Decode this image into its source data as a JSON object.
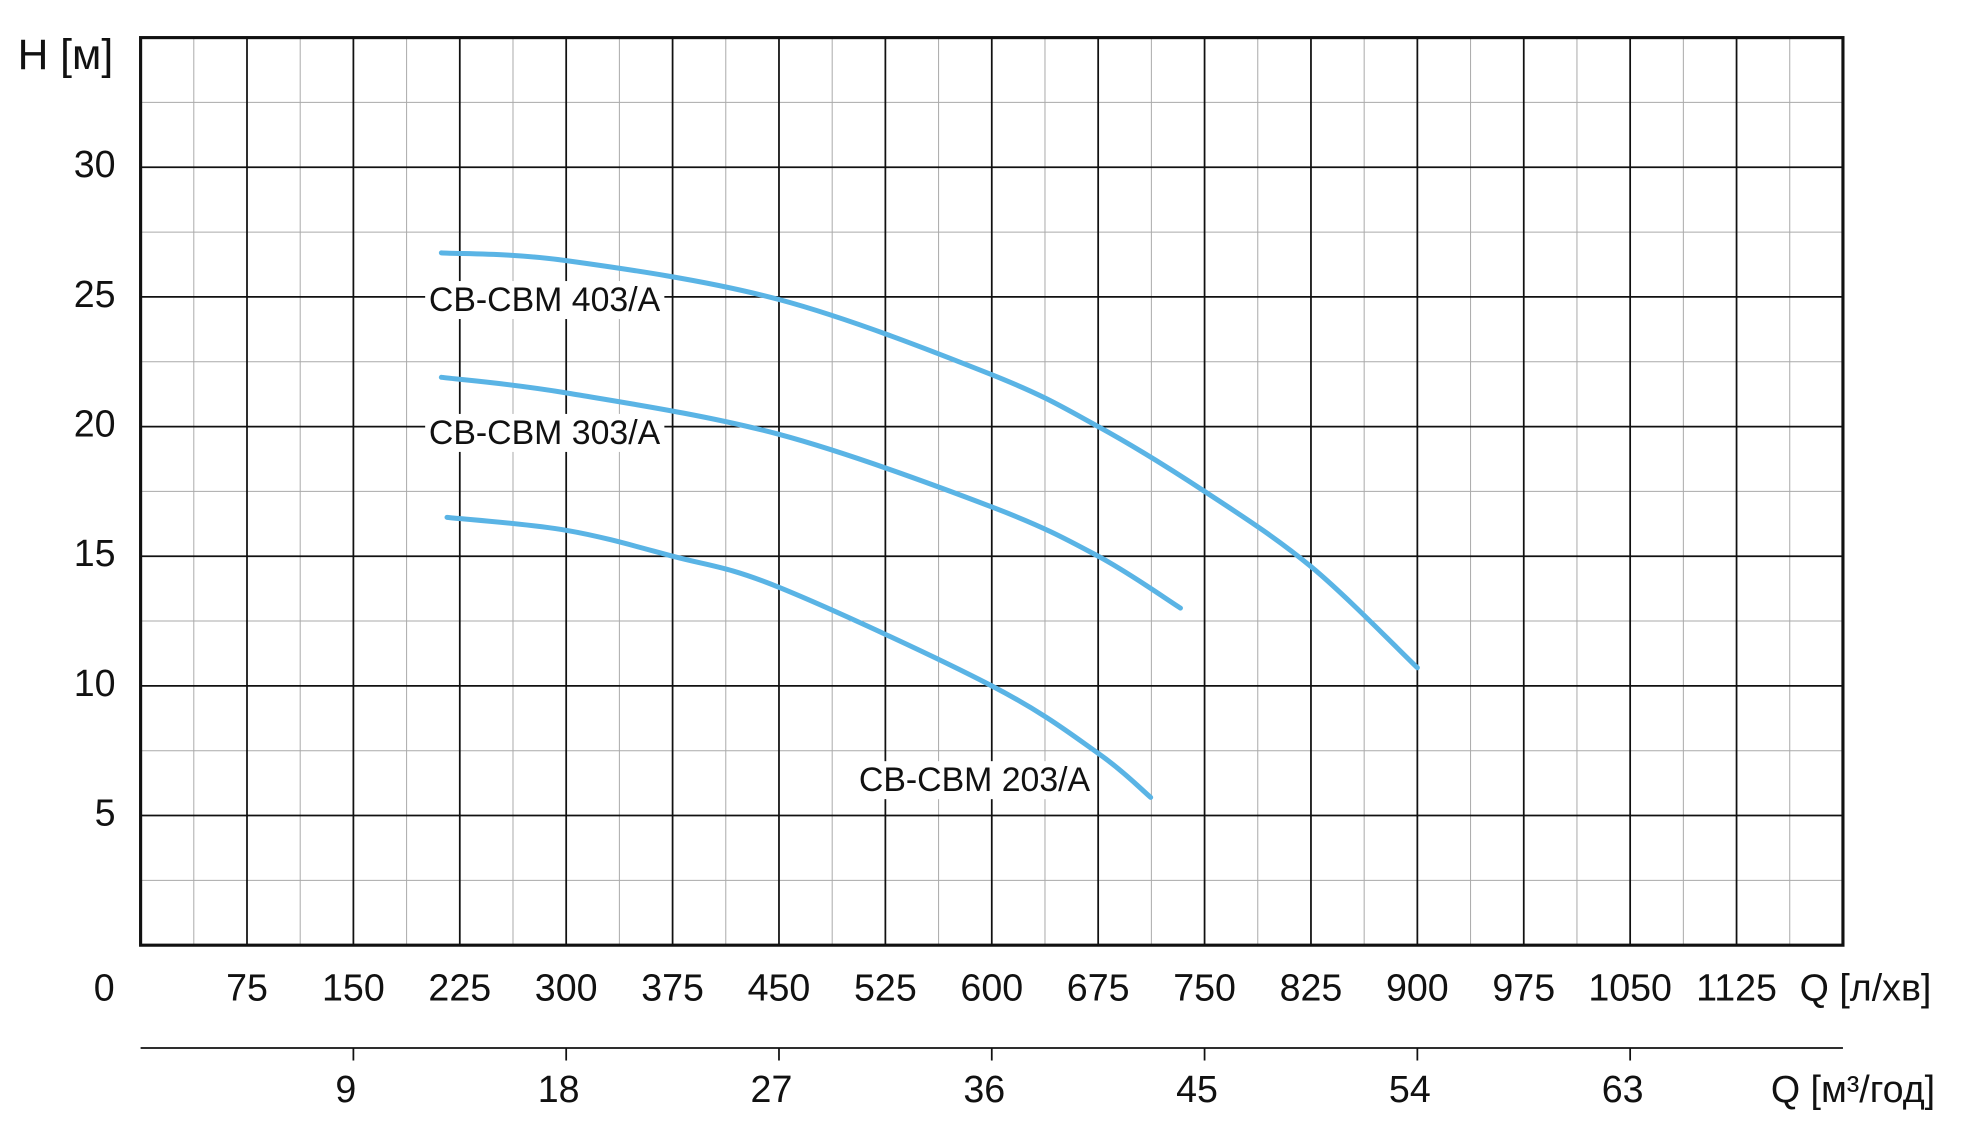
{
  "chart_data": {
    "type": "line",
    "ylabel": "H [м]",
    "xlabel": "Q [л/хв]",
    "x2label": "Q [м³/год]",
    "xlim": [
      0,
      1200
    ],
    "xticks": [
      0,
      75,
      150,
      225,
      300,
      375,
      450,
      525,
      600,
      675,
      750,
      825,
      900,
      975,
      1050,
      1125
    ],
    "x2lim": [
      0,
      72
    ],
    "x2ticks": [
      9,
      18,
      27,
      36,
      45,
      54,
      63
    ],
    "ylim": [
      0,
      35
    ],
    "yticks": [
      5,
      10,
      15,
      20,
      25,
      30
    ],
    "grid": true,
    "series": [
      {
        "name": "CB-CBM 403/A",
        "color": "#5ab4e5",
        "x": [
          212,
          300,
          450,
          600,
          675,
          750,
          825,
          900
        ],
        "values": [
          26.7,
          26.4,
          24.9,
          22,
          20,
          17.5,
          14.6,
          10.7
        ]
      },
      {
        "name": "CB-CBM 303/A",
        "color": "#5ab4e5",
        "x": [
          212,
          300,
          450,
          600,
          675,
          733
        ],
        "values": [
          21.9,
          21.3,
          19.7,
          16.9,
          15,
          13
        ]
      },
      {
        "name": "CB-CBM 203/A",
        "color": "#5ab4e5",
        "x": [
          216,
          300,
          375,
          450,
          600,
          675,
          712
        ],
        "values": [
          16.5,
          16,
          15,
          13.8,
          10,
          7.4,
          5.7
        ]
      }
    ]
  }
}
